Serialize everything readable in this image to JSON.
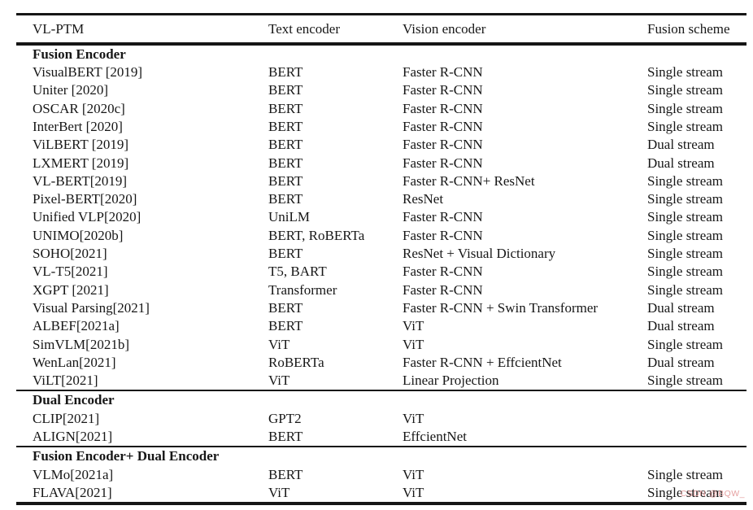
{
  "watermark": "CSDN @BQW_",
  "colors": {
    "text": "#171717",
    "rule": "#151515",
    "watermark": "#e29696"
  },
  "table": {
    "columns": [
      "VL-PTM",
      "Text encoder",
      "Vision encoder",
      "Fusion scheme"
    ],
    "sections": [
      {
        "title": "Fusion Encoder",
        "rows": [
          [
            "VisualBERT [2019]",
            "BERT",
            "Faster R-CNN",
            "Single stream"
          ],
          [
            "Uniter [2020]",
            "BERT",
            "Faster R-CNN",
            "Single stream"
          ],
          [
            "OSCAR [2020c]",
            "BERT",
            "Faster R-CNN",
            "Single stream"
          ],
          [
            "InterBert [2020]",
            "BERT",
            "Faster R-CNN",
            "Single stream"
          ],
          [
            "ViLBERT [2019]",
            "BERT",
            "Faster R-CNN",
            "Dual stream"
          ],
          [
            "LXMERT [2019]",
            "BERT",
            "Faster R-CNN",
            "Dual stream"
          ],
          [
            "VL-BERT[2019]",
            "BERT",
            "Faster R-CNN+ ResNet",
            "Single stream"
          ],
          [
            "Pixel-BERT[2020]",
            "BERT",
            "ResNet",
            "Single stream"
          ],
          [
            "Unified VLP[2020]",
            "UniLM",
            "Faster R-CNN",
            "Single stream"
          ],
          [
            "UNIMO[2020b]",
            "BERT, RoBERTa",
            "Faster R-CNN",
            "Single stream"
          ],
          [
            "SOHO[2021]",
            "BERT",
            "ResNet + Visual Dictionary",
            "Single stream"
          ],
          [
            "VL-T5[2021]",
            "T5, BART",
            "Faster R-CNN",
            "Single stream"
          ],
          [
            "XGPT [2021]",
            "Transformer",
            "Faster R-CNN",
            "Single stream"
          ],
          [
            "Visual Parsing[2021]",
            "BERT",
            "Faster R-CNN + Swin Transformer",
            "Dual stream"
          ],
          [
            "ALBEF[2021a]",
            "BERT",
            "ViT",
            "Dual stream"
          ],
          [
            "SimVLM[2021b]",
            "ViT",
            "ViT",
            "Single stream"
          ],
          [
            "WenLan[2021]",
            "RoBERTa",
            "Faster R-CNN + EffcientNet",
            "Dual stream"
          ],
          [
            "ViLT[2021]",
            "ViT",
            "Linear Projection",
            "Single stream"
          ]
        ]
      },
      {
        "title": "Dual Encoder",
        "rows": [
          [
            "CLIP[2021]",
            "GPT2",
            "ViT",
            ""
          ],
          [
            "ALIGN[2021]",
            "BERT",
            "EffcientNet",
            ""
          ]
        ]
      },
      {
        "title": "Fusion Encoder+ Dual Encoder",
        "rows": [
          [
            "VLMo[2021a]",
            "BERT",
            "ViT",
            "Single stream"
          ],
          [
            "FLAVA[2021]",
            "ViT",
            "ViT",
            "Single stream"
          ]
        ]
      }
    ]
  }
}
